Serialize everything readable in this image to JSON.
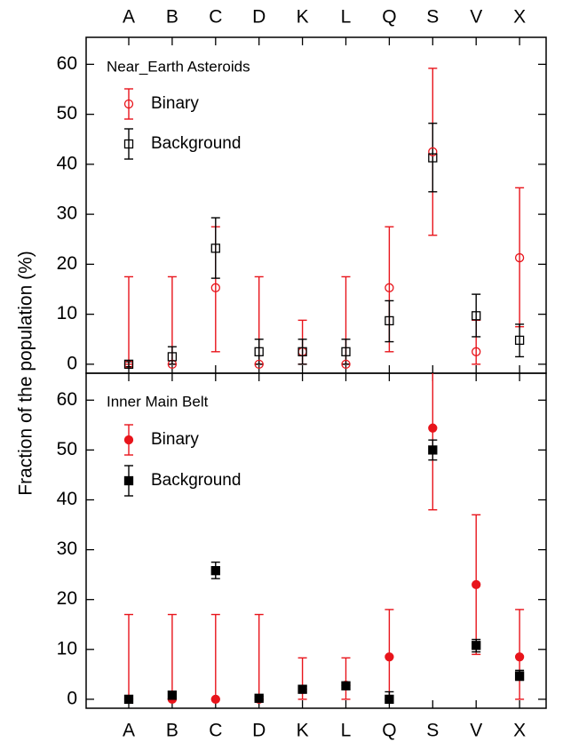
{
  "chart_data": [
    {
      "type": "errorbar",
      "title": "Near_Earth Asteroids",
      "ylabel": "Fraction of the population (%)",
      "categories": [
        "A",
        "B",
        "C",
        "D",
        "K",
        "L",
        "Q",
        "S",
        "V",
        "X"
      ],
      "filled": false,
      "series": [
        {
          "name": "Binary",
          "color": "#e8141b",
          "marker": "circle",
          "values": [
            0,
            0,
            15.3,
            0,
            2.5,
            0,
            15.3,
            42.5,
            2.5,
            21.3
          ],
          "err_minus": [
            0,
            0,
            12.8,
            0,
            2.5,
            0,
            12.8,
            16.7,
            2.5,
            13.8
          ],
          "err_plus": [
            17.5,
            17.5,
            12.2,
            17.5,
            6.3,
            17.5,
            12.2,
            16.7,
            6.3,
            14
          ]
        },
        {
          "name": "Background",
          "color": "#000000",
          "marker": "square",
          "values": [
            0,
            1.5,
            23.2,
            2.5,
            2.5,
            2.5,
            8.7,
            41.3,
            9.7,
            4.8
          ],
          "err_minus": [
            0.5,
            1.5,
            6,
            2.5,
            2.5,
            2.5,
            4.2,
            6.8,
            4.2,
            3.3
          ],
          "err_plus": [
            0.5,
            2,
            6.1,
            2.5,
            2.5,
            2.5,
            4,
            6.9,
            4.3,
            3.2
          ]
        }
      ],
      "ylim": [
        -1.8,
        65.4
      ],
      "yticks": [
        0,
        10,
        20,
        30,
        40,
        50,
        60
      ]
    },
    {
      "type": "errorbar",
      "title": "Inner Main Belt",
      "categories": [
        "A",
        "B",
        "C",
        "D",
        "K",
        "L",
        "Q",
        "S",
        "V",
        "X"
      ],
      "filled": true,
      "series": [
        {
          "name": "Binary",
          "color": "#e8141b",
          "marker": "circle",
          "values": [
            0,
            0,
            0,
            0,
            2,
            2.8,
            8.5,
            54.4,
            23,
            8.5
          ],
          "err_minus": [
            0,
            0,
            0,
            0,
            2,
            2.8,
            8.5,
            16.4,
            14,
            8.5
          ],
          "err_plus": [
            17,
            17,
            17,
            17,
            6.3,
            5.5,
            9.5,
            16.4,
            14,
            9.5
          ]
        },
        {
          "name": "Background",
          "color": "#000000",
          "marker": "square",
          "values": [
            0,
            0.8,
            25.8,
            0.2,
            2,
            2.7,
            0,
            50,
            10.8,
            4.7
          ],
          "err_minus": [
            0.3,
            0.8,
            1.6,
            0.4,
            0.6,
            0.7,
            0,
            2,
            1.3,
            0.9
          ],
          "err_plus": [
            0.3,
            0.8,
            1.7,
            0.4,
            0.6,
            0.7,
            1.5,
            2,
            1.2,
            1.1
          ]
        }
      ],
      "ylim": [
        -1.8,
        65.4
      ],
      "yticks": [
        0,
        10,
        20,
        30,
        40,
        50,
        60
      ]
    }
  ]
}
